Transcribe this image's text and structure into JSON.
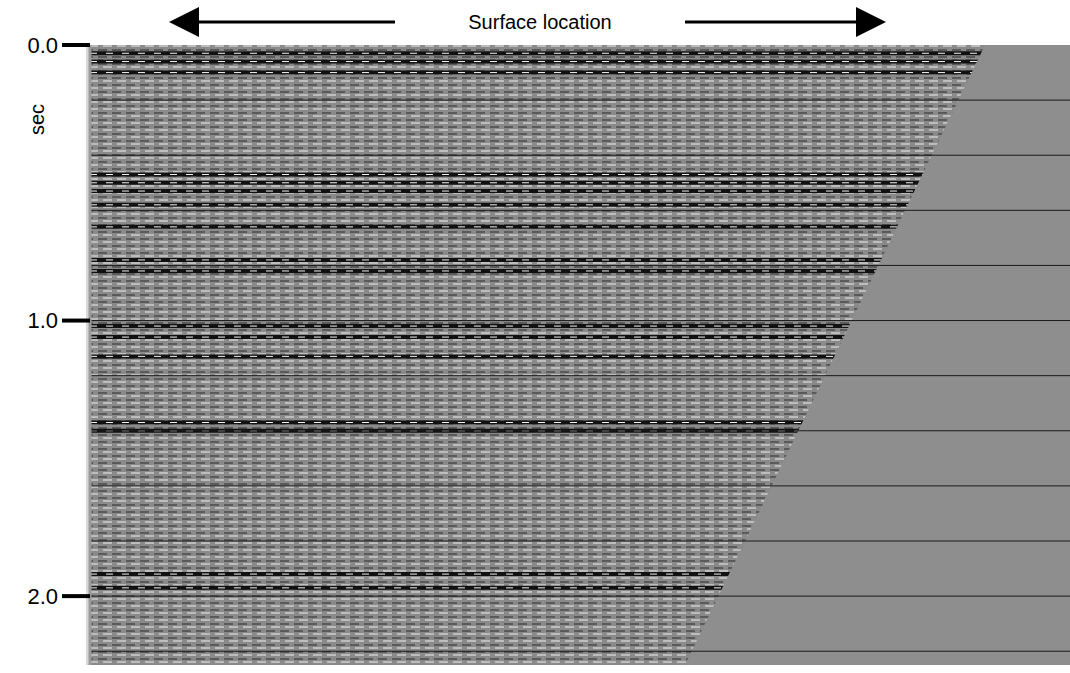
{
  "chart_data": {
    "type": "seismic_section",
    "xlabel": "Surface location",
    "ylabel": "sec",
    "ylim": [
      0,
      2.25
    ],
    "yticks": [
      {
        "value": 0,
        "label": "0.0"
      },
      {
        "value": 1,
        "label": "1.0"
      },
      {
        "value": 2,
        "label": "2.0"
      }
    ],
    "grid": true,
    "grid_lines": [
      0.2,
      0.4,
      0.6,
      0.8,
      1.0,
      1.2,
      1.4,
      1.6,
      1.8,
      2.0,
      2.2
    ],
    "reflectors": [
      0.03,
      0.06,
      0.1,
      0.47,
      0.5,
      0.53,
      0.58,
      0.66,
      0.78,
      0.82,
      1.02,
      1.06,
      1.13,
      1.37,
      1.4,
      1.92,
      1.97
    ],
    "tick_labels": "y"
  }
}
